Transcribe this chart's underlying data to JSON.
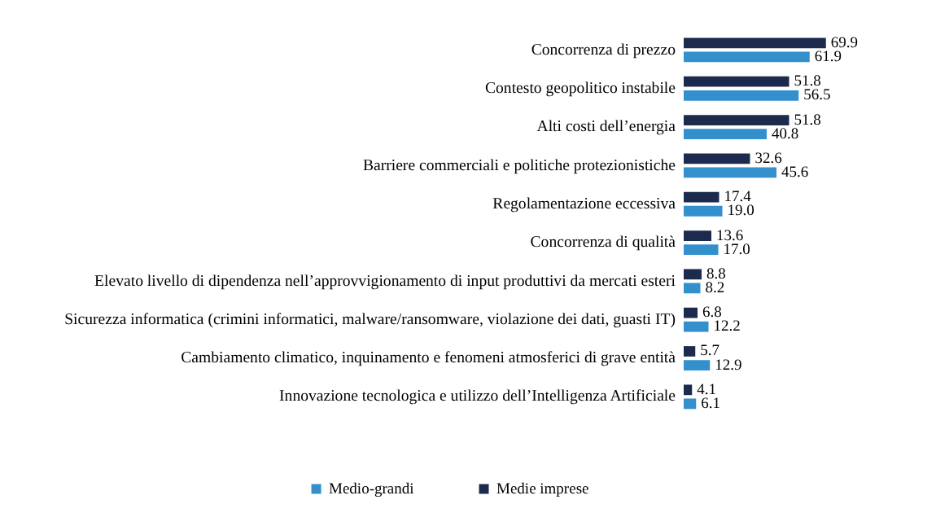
{
  "chart_data": {
    "type": "bar",
    "orientation": "horizontal",
    "categories": [
      "Concorrenza di prezzo",
      "Contesto geopolitico instabile",
      "Alti costi dell’energia",
      "Barriere commerciali e politiche protezionistiche",
      "Regolamentazione eccessiva",
      "Concorrenza di qualità",
      "Elevato livello di dipendenza nell’approvvigionamento di input produttivi da mercati esteri",
      "Sicurezza informatica (crimini informatici, malware/ransomware, violazione dei dati, guasti IT)",
      "Cambiamento climatico, inquinamento e fenomeni atmosferici di grave entità",
      "Innovazione tecnologica e utilizzo dell’Intelligenza Artificiale"
    ],
    "series": [
      {
        "name": "Medie imprese",
        "color": "#1c2b4d",
        "values": [
          69.9,
          51.8,
          51.8,
          32.6,
          17.4,
          13.6,
          8.8,
          6.8,
          5.7,
          4.1
        ],
        "value_labels": [
          "69.9",
          "51.8",
          "51.8",
          "32.6",
          "17.4",
          "13.6",
          "8.8",
          "6.8",
          "5.7",
          "4.1"
        ]
      },
      {
        "name": "Medio-grandi",
        "color": "#3390cc",
        "values": [
          61.9,
          56.5,
          40.8,
          45.6,
          19.0,
          17.0,
          8.2,
          12.2,
          12.9,
          6.1
        ],
        "value_labels": [
          "61.9",
          "56.5",
          "40.8",
          "45.6",
          "19.0",
          "17.0",
          "8.2",
          "12.2",
          "12.9",
          "6.1"
        ]
      }
    ],
    "legend": "bottom",
    "grid": false,
    "tick_labels": "y"
  }
}
